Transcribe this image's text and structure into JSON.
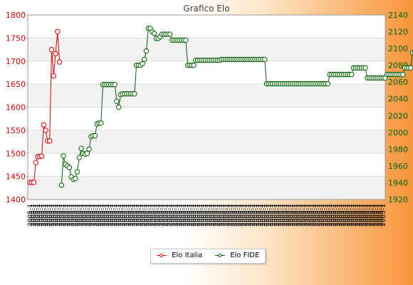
{
  "chart_data": {
    "type": "line",
    "title": "Grafico Elo",
    "left_axis": {
      "ticks": [
        1400,
        1450,
        1500,
        1550,
        1600,
        1650,
        1700,
        1750,
        1800
      ],
      "range": [
        1400,
        1800
      ],
      "color": "#e00000"
    },
    "right_axis": {
      "ticks": [
        1920,
        1940,
        1960,
        1980,
        2000,
        2020,
        2040,
        2060,
        2080,
        2100,
        2120,
        2140
      ],
      "range": [
        1920,
        2140
      ],
      "color": "#006400"
    },
    "x_count": 180,
    "series": [
      {
        "name": "Elo Italia",
        "axis": "left",
        "color": "#e00000",
        "start_index": 0,
        "values": [
          1437,
          1437,
          1437,
          1480,
          1493,
          1493,
          1494,
          1562,
          1550,
          1527,
          1527,
          1725,
          1668,
          1716,
          1764,
          1698
        ]
      },
      {
        "name": "Elo FIDE",
        "axis": "right",
        "color": "#006400",
        "start_index": 16,
        "values": [
          1937,
          1972,
          1962,
          1960,
          1958,
          1947,
          1944,
          1945,
          1953,
          1970,
          1981,
          1975,
          1974,
          1975,
          1980,
          1995,
          1996,
          1996,
          2010,
          2011,
          2011,
          2057,
          2057,
          2057,
          2057,
          2057,
          2057,
          2057,
          2037,
          2030,
          2045,
          2046,
          2046,
          2046,
          2046,
          2046,
          2046,
          2046,
          2080,
          2080,
          2080,
          2082,
          2087,
          2097,
          2124,
          2124,
          2120,
          2118,
          2112,
          2112,
          2114,
          2117,
          2117,
          2117,
          2117,
          2117,
          2110,
          2110,
          2110,
          2110,
          2110,
          2110,
          2110,
          2110,
          2080,
          2080,
          2080,
          2080,
          2086,
          2086,
          2086,
          2086,
          2086,
          2086,
          2086,
          2086,
          2086,
          2086,
          2086,
          2086,
          2086,
          2087,
          2087,
          2087,
          2087,
          2087,
          2087,
          2087,
          2087,
          2087,
          2087,
          2087,
          2087,
          2087,
          2087,
          2087,
          2087,
          2087,
          2087,
          2087,
          2087,
          2087,
          2087,
          2087,
          2058,
          2058,
          2058,
          2058,
          2058,
          2058,
          2058,
          2058,
          2058,
          2058,
          2058,
          2058,
          2058,
          2058,
          2058,
          2058,
          2058,
          2058,
          2058,
          2058,
          2058,
          2058,
          2058,
          2058,
          2058,
          2058,
          2058,
          2058,
          2058,
          2058,
          2058,
          2058,
          2069,
          2069,
          2069,
          2069,
          2069,
          2069,
          2069,
          2069,
          2069,
          2069,
          2069,
          2069,
          2077,
          2077,
          2077,
          2077,
          2077,
          2077,
          2077,
          2065,
          2065,
          2065,
          2065,
          2065,
          2065,
          2065,
          2065,
          2065,
          2065,
          2069,
          2069,
          2069,
          2069,
          2069,
          2069,
          2069,
          2069,
          2069,
          2077,
          2077,
          2077,
          2077,
          2095,
          2095,
          2095,
          2095,
          2095,
          2095,
          2095
        ]
      }
    ],
    "x_tick_text": "2005-1",
    "grid": true,
    "legend_position": "bottom-center"
  }
}
